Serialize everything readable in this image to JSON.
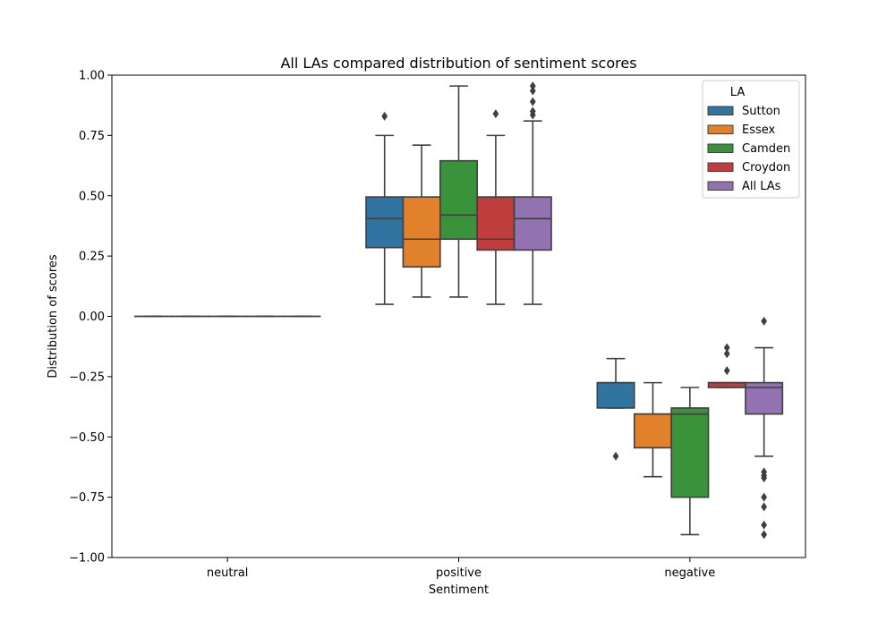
{
  "chart_data": {
    "type": "box",
    "title": "All LAs compared distribution of sentiment scores",
    "xlabel": "Sentiment",
    "ylabel": "Distribution of scores",
    "ylim": [
      -1.0,
      1.0
    ],
    "yticks": [
      1.0,
      0.75,
      0.5,
      0.25,
      0.0,
      -0.25,
      -0.5,
      -0.75,
      -1.0
    ],
    "ytick_labels": [
      "1.00",
      "0.75",
      "0.50",
      "0.25",
      "0.00",
      "−0.25",
      "−0.50",
      "−0.75",
      "−1.00"
    ],
    "categories": [
      "neutral",
      "positive",
      "negative"
    ],
    "grid": false,
    "legend": {
      "title": "LA",
      "position": "top-right",
      "items": [
        "Sutton",
        "Essex",
        "Camden",
        "Croydon",
        "All LAs"
      ]
    },
    "series": [
      {
        "name": "Sutton",
        "color": "#3274a1",
        "boxes": [
          {
            "category": "neutral",
            "whislo": 0.0,
            "q1": 0.0,
            "med": 0.0,
            "q3": 0.0,
            "whishi": 0.0,
            "fliers": []
          },
          {
            "category": "positive",
            "whislo": 0.05,
            "q1": 0.285,
            "med": 0.405,
            "q3": 0.495,
            "whishi": 0.75,
            "fliers": [
              0.83
            ]
          },
          {
            "category": "negative",
            "whislo": -0.38,
            "q1": -0.38,
            "med": -0.275,
            "q3": -0.275,
            "whishi": -0.175,
            "fliers": [
              -0.58
            ]
          }
        ]
      },
      {
        "name": "Essex",
        "color": "#e1812c",
        "boxes": [
          {
            "category": "neutral",
            "whislo": 0.0,
            "q1": 0.0,
            "med": 0.0,
            "q3": 0.0,
            "whishi": 0.0,
            "fliers": []
          },
          {
            "category": "positive",
            "whislo": 0.08,
            "q1": 0.205,
            "med": 0.32,
            "q3": 0.495,
            "whishi": 0.71,
            "fliers": []
          },
          {
            "category": "negative",
            "whislo": -0.665,
            "q1": -0.545,
            "med": -0.405,
            "q3": -0.405,
            "whishi": -0.275,
            "fliers": []
          }
        ]
      },
      {
        "name": "Camden",
        "color": "#3a923a",
        "boxes": [
          {
            "category": "neutral",
            "whislo": 0.0,
            "q1": 0.0,
            "med": 0.0,
            "q3": 0.0,
            "whishi": 0.0,
            "fliers": []
          },
          {
            "category": "positive",
            "whislo": 0.08,
            "q1": 0.32,
            "med": 0.42,
            "q3": 0.645,
            "whishi": 0.955,
            "fliers": []
          },
          {
            "category": "negative",
            "whislo": -0.905,
            "q1": -0.75,
            "med": -0.405,
            "q3": -0.38,
            "whishi": -0.295,
            "fliers": []
          }
        ]
      },
      {
        "name": "Croydon",
        "color": "#c03d3e",
        "boxes": [
          {
            "category": "neutral",
            "whislo": 0.0,
            "q1": 0.0,
            "med": 0.0,
            "q3": 0.0,
            "whishi": 0.0,
            "fliers": []
          },
          {
            "category": "positive",
            "whislo": 0.05,
            "q1": 0.275,
            "med": 0.32,
            "q3": 0.495,
            "whishi": 0.75,
            "fliers": [
              0.84
            ]
          },
          {
            "category": "negative",
            "whislo": -0.295,
            "q1": -0.295,
            "med": -0.275,
            "q3": -0.275,
            "whishi": -0.275,
            "fliers": [
              -0.13,
              -0.155,
              -0.225
            ]
          }
        ]
      },
      {
        "name": "All LAs",
        "color": "#9372b2",
        "boxes": [
          {
            "category": "neutral",
            "whislo": 0.0,
            "q1": 0.0,
            "med": 0.0,
            "q3": 0.0,
            "whishi": 0.0,
            "fliers": []
          },
          {
            "category": "positive",
            "whislo": 0.05,
            "q1": 0.275,
            "med": 0.405,
            "q3": 0.495,
            "whishi": 0.81,
            "fliers": [
              0.955,
              0.935,
              0.89,
              0.85,
              0.835
            ]
          },
          {
            "category": "negative",
            "whislo": -0.58,
            "q1": -0.405,
            "med": -0.295,
            "q3": -0.275,
            "whishi": -0.13,
            "fliers": [
              -0.02,
              -0.645,
              -0.66,
              -0.67,
              -0.75,
              -0.79,
              -0.865,
              -0.905
            ]
          }
        ]
      }
    ]
  }
}
